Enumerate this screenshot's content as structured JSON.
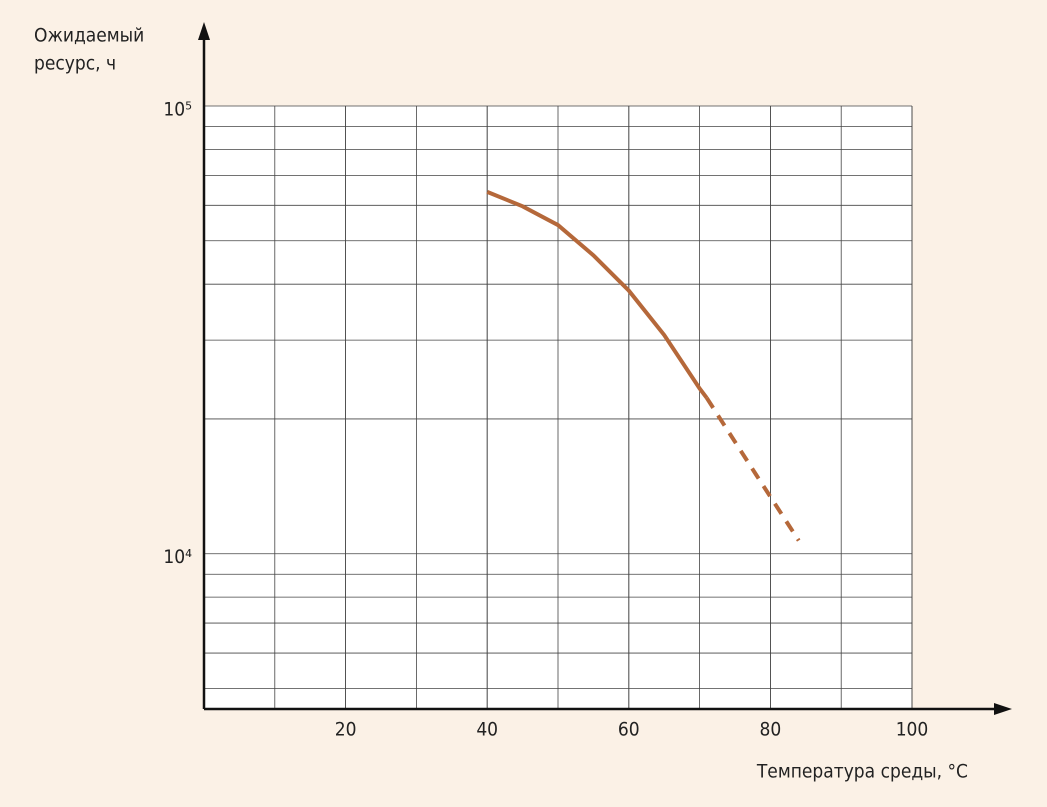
{
  "chart_data": {
    "type": "line",
    "y_label": [
      "Ожидаемый",
      "ресурс, ч"
    ],
    "x_label": "Температура среды, °С",
    "xlim": [
      0,
      100
    ],
    "xticks": [
      20,
      40,
      60,
      80,
      100
    ],
    "x_grid_step": 10,
    "ylim": [
      4500,
      100000
    ],
    "log_y": true,
    "yticks": [
      {
        "value": 10000,
        "label": "10⁴"
      },
      {
        "value": 100000,
        "label": "10⁵"
      }
    ],
    "minor_yticks": [
      5000,
      6000,
      7000,
      8000,
      9000,
      20000,
      30000,
      40000,
      50000,
      60000,
      70000,
      80000,
      90000
    ],
    "grid": true,
    "series": [
      {
        "color": "#b5683a",
        "style": "solid",
        "x": [
          40,
          45,
          50,
          55,
          60,
          65,
          70,
          71
        ],
        "values": [
          64300,
          59700,
          54200,
          46400,
          38700,
          30800,
          23400,
          22300
        ]
      },
      {
        "color": "#b5683a",
        "style": "dashed",
        "x": [
          71,
          78,
          84
        ],
        "values": [
          22300,
          15000,
          10700
        ]
      }
    ]
  }
}
